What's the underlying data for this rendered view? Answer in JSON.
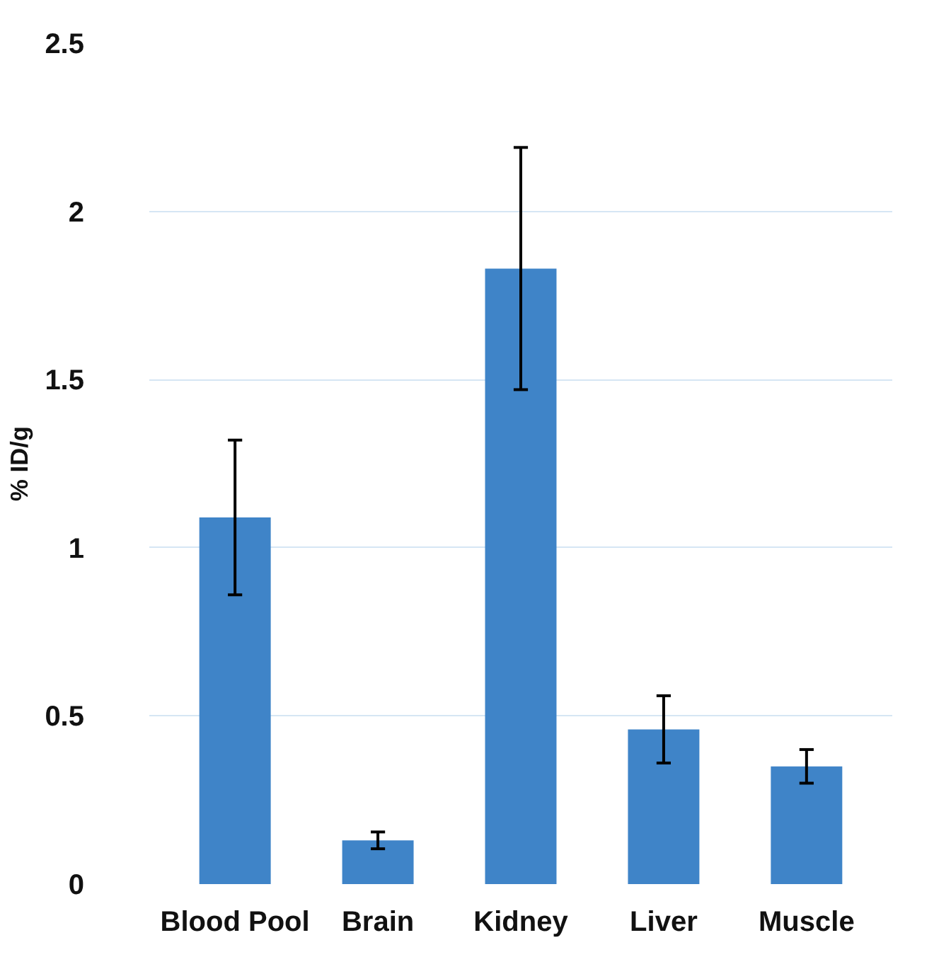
{
  "chart_data": {
    "type": "bar",
    "ylabel": "% ID/g",
    "categories": [
      "Blood Pool",
      "Brain",
      "Kidney",
      "Liver",
      "Muscle"
    ],
    "values": [
      1.09,
      0.13,
      1.83,
      0.46,
      0.35
    ],
    "errors": [
      0.23,
      0.025,
      0.36,
      0.1,
      0.05
    ],
    "color": "#3f84c8",
    "ylim": [
      0,
      2.5
    ],
    "yticks": [
      0,
      0.5,
      1,
      1.5,
      2,
      2.5
    ],
    "grid": "y"
  }
}
